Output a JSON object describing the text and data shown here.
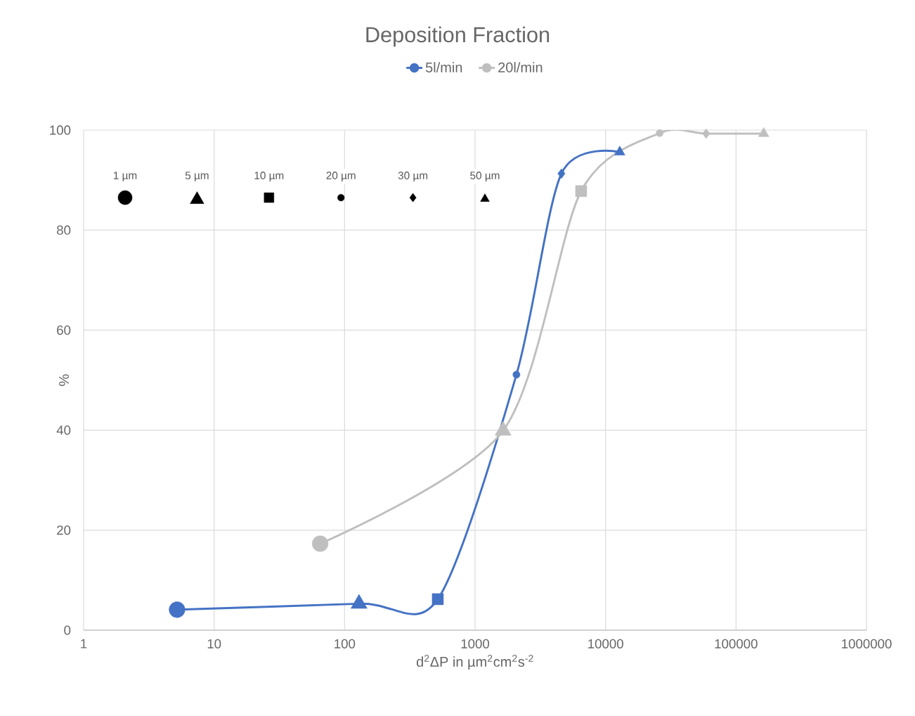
{
  "chart_data": {
    "type": "line",
    "title": "Deposition Fraction",
    "xlabel": "d$^{2}$ΔP in µm$^{2}$cm$^{2}$s$^{-2}$",
    "ylabel": "%",
    "log": "x",
    "xlim": [
      1,
      1000000
    ],
    "xticks": [
      1,
      10,
      100,
      1000,
      10000,
      100000,
      1000000
    ],
    "ylim": [
      0,
      100
    ],
    "yticks": [
      0,
      20,
      40,
      60,
      80,
      100
    ],
    "grid": true,
    "legend": "top",
    "line_style": "solid",
    "annotations": [
      "1 µm",
      "5 µm",
      "10 µm",
      "20 µm",
      "30 µm",
      "50 µm"
    ],
    "series": [
      {
        "name": "5l/min",
        "color": "#4472c4",
        "marker": [
          "circle",
          "triangle",
          "square",
          "circle",
          "diamond",
          "triangle"
        ],
        "x": [
          5.2,
          129,
          518,
          2075,
          4590,
          12850
        ],
        "values": [
          4.1,
          5.3,
          6.2,
          51.1,
          91.3,
          95.6
        ]
      },
      {
        "name": "20l/min",
        "color": "#bfbfbf",
        "marker": [
          "circle",
          "triangle",
          "square",
          "circle",
          "diamond",
          "triangle"
        ],
        "x": [
          65,
          1640,
          6500,
          26000,
          59000,
          163000
        ],
        "values": [
          17.3,
          39.9,
          87.8,
          99.4,
          99.3,
          99.3
        ]
      }
    ]
  }
}
